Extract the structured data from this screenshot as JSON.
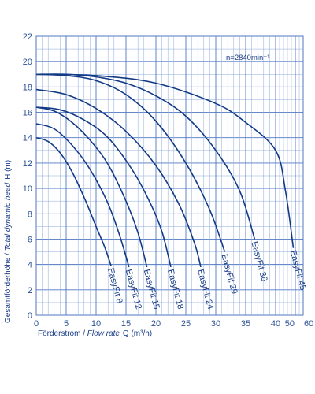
{
  "colors": {
    "background": "#ffffff",
    "grid": "#4f77c2",
    "curve": "#123a86",
    "text": "#1a3d86"
  },
  "chart_data": {
    "type": "line",
    "title": "",
    "speed_note": "n=2840min⁻¹",
    "xlabel_plain": "Förderstrom / ",
    "xlabel_italic": "Flow rate",
    "xlabel_symbol": "Q (m³/h)",
    "ylabel_plain": "Gesamtförderhöhe / ",
    "ylabel_italic": "Total dynamic head",
    "ylabel_symbol": "H (m)",
    "x_ticks": [
      "0",
      "5",
      "10",
      "15",
      "20",
      "25",
      "30",
      "35",
      "40",
      "50",
      "60"
    ],
    "y_ticks": [
      "0",
      "2",
      "4",
      "6",
      "8",
      "10",
      "12",
      "14",
      "16",
      "18",
      "20",
      "22"
    ],
    "ylim": [
      0,
      22
    ],
    "grid": true,
    "series": [
      {
        "name": "EasyFit 8",
        "x": [
          0,
          2,
          4,
          6,
          8,
          10,
          11.5,
          12.5
        ],
        "y": [
          14.0,
          13.7,
          12.8,
          11.3,
          9.3,
          7.0,
          5.3,
          3.9
        ]
      },
      {
        "name": "EasyFit 12",
        "x": [
          0,
          3,
          6,
          9,
          12,
          14,
          15.5
        ],
        "y": [
          15.1,
          14.7,
          13.4,
          11.5,
          8.8,
          6.2,
          3.8
        ]
      },
      {
        "name": "EasyFit 15",
        "x": [
          0,
          3,
          6,
          9,
          12,
          15,
          17,
          18.5
        ],
        "y": [
          16.4,
          16.1,
          15.2,
          13.8,
          11.9,
          9.0,
          6.5,
          3.8
        ]
      },
      {
        "name": "EasyFit 18",
        "x": [
          0,
          4,
          8,
          12,
          16,
          19,
          21,
          22.5
        ],
        "y": [
          16.4,
          16.2,
          15.4,
          14.0,
          11.5,
          8.9,
          6.6,
          3.8
        ]
      },
      {
        "name": "EasyFit 24",
        "x": [
          0,
          5,
          10,
          15,
          20,
          24,
          26.5,
          27.5
        ],
        "y": [
          17.8,
          17.4,
          16.3,
          14.5,
          11.8,
          8.6,
          5.6,
          3.8
        ]
      },
      {
        "name": "EasyFit 29",
        "x": [
          0,
          5,
          10,
          15,
          20,
          25,
          29,
          31.5
        ],
        "y": [
          19.0,
          18.9,
          18.5,
          17.4,
          15.3,
          12.0,
          8.3,
          5.0
        ]
      },
      {
        "name": "EasyFit 36",
        "x": [
          0,
          5,
          10,
          15,
          20,
          25,
          30,
          34,
          36.5
        ],
        "y": [
          19.0,
          19.0,
          18.8,
          18.3,
          17.3,
          15.7,
          13.0,
          9.8,
          6.0
        ]
      },
      {
        "name": "EasyFit 45",
        "x": [
          0,
          10,
          20,
          30,
          35,
          40,
          45,
          49
        ],
        "y": [
          19.0,
          18.9,
          18.3,
          16.7,
          15.2,
          13.0,
          9.8,
          5.3
        ]
      }
    ]
  }
}
